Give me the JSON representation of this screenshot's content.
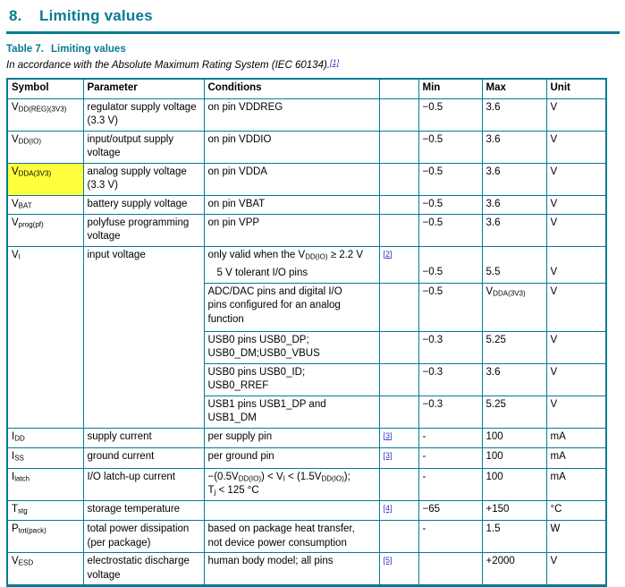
{
  "colors": {
    "accent": "#077B93",
    "link": "#3333CC",
    "highlight": "#FFFF00"
  },
  "page": {
    "section_number": "8.",
    "section_title": "Limiting values",
    "table_label": "Table 7.",
    "table_title": "Limiting values",
    "table_subtitle": "In accordance with the Absolute Maximum Rating System (IEC 60134).",
    "subtitle_ref": "[1]"
  },
  "table": {
    "headers": [
      "Symbol",
      "Parameter",
      "Conditions",
      "",
      "Min",
      "Max",
      "Unit"
    ],
    "rows": [
      {
        "symbol": "V<sub>DD(REG)(3V3)</sub>",
        "parameter": "regulator supply voltage<br>(3.3 V)",
        "conditions": "on pin VDDREG",
        "ref": "",
        "min": "−0.5",
        "max": "3.6",
        "unit": "V"
      },
      {
        "symbol": "V<sub>DD(IO)</sub>",
        "parameter": "input/output supply<br>voltage",
        "conditions": "on pin VDDIO",
        "ref": "",
        "min": "−0.5",
        "max": "3.6",
        "unit": "V"
      },
      {
        "symbol": "V<sub>DDA(3V3)</sub>",
        "parameter": "analog supply voltage<br>(3.3 V)",
        "conditions": "on pin VDDA",
        "ref": "",
        "min": "−0.5",
        "max": "3.6",
        "unit": "V",
        "highlighted": true
      },
      {
        "symbol": "V<sub>BAT</sub>",
        "parameter": "battery supply voltage",
        "conditions": "on pin VBAT",
        "ref": "",
        "min": "−0.5",
        "max": "3.6",
        "unit": "V"
      },
      {
        "symbol": "V<sub>prog(pf)</sub>",
        "parameter": "polyfuse programming<br>voltage",
        "conditions": "on pin VPP",
        "ref": "",
        "min": "−0.5",
        "max": "3.6",
        "unit": "V"
      },
      {
        "symbol": "V<sub>I</sub>",
        "parameter": "input voltage",
        "ref": "[2]",
        "intro": "only valid when the V<sub>DD(IO)</sub> ≥ 2.2 V",
        "subrows": [
          {
            "conditions": "5 V tolerant I/O pins",
            "min": "−0.5",
            "max": "5.5",
            "unit": "V"
          },
          {
            "conditions": "ADC/DAC pins and digital I/O<br>pins configured for an analog<br>function",
            "min": "−0.5",
            "max": "V<sub>DDA(3V3)</sub>",
            "unit": "V"
          },
          {
            "conditions": "USB0 pins USB0_DP;<br>USB0_DM;USB0_VBUS",
            "min": "−0.3",
            "max": "5.25",
            "unit": "V"
          },
          {
            "conditions": "USB0 pins USB0_ID;<br>USB0_RREF",
            "min": "−0.3",
            "max": "3.6",
            "unit": "V"
          },
          {
            "conditions": "USB1 pins USB1_DP and<br>USB1_DM",
            "min": "−0.3",
            "max": "5.25",
            "unit": "V"
          }
        ]
      },
      {
        "symbol": "I<sub>DD</sub>",
        "parameter": "supply current",
        "conditions": "per supply pin",
        "ref": "[3]",
        "min": "-",
        "max": "100",
        "unit": "mA"
      },
      {
        "symbol": "I<sub>SS</sub>",
        "parameter": "ground current",
        "conditions": "per ground pin",
        "ref": "[3]",
        "min": "-",
        "max": "100",
        "unit": "mA"
      },
      {
        "symbol": "I<sub>latch</sub>",
        "parameter": "I/O latch-up current",
        "conditions": "−(0.5V<sub>DD(IO)</sub>) &lt; V<sub>I</sub> &lt; (1.5V<sub>DD(IO)</sub>);<br>T<sub>j</sub> &lt; 125 °C",
        "ref": "",
        "min": "-",
        "max": "100",
        "unit": "mA"
      },
      {
        "symbol": "T<sub>stg</sub>",
        "parameter": "storage temperature",
        "conditions": "",
        "ref": "[4]",
        "min": "−65",
        "max": "+150",
        "unit": "°C"
      },
      {
        "symbol": "P<sub>tot(pack)</sub>",
        "parameter": "total power dissipation<br>(per package)",
        "conditions": "based on package heat transfer,<br>not device power consumption",
        "ref": "",
        "min": "-",
        "max": "1.5",
        "unit": "W"
      },
      {
        "symbol": "V<sub>ESD</sub>",
        "parameter": "electrostatic discharge<br>voltage",
        "conditions": "human body model; all pins",
        "ref": "[5]",
        "min": "",
        "max": "+2000",
        "unit": "V"
      }
    ]
  }
}
